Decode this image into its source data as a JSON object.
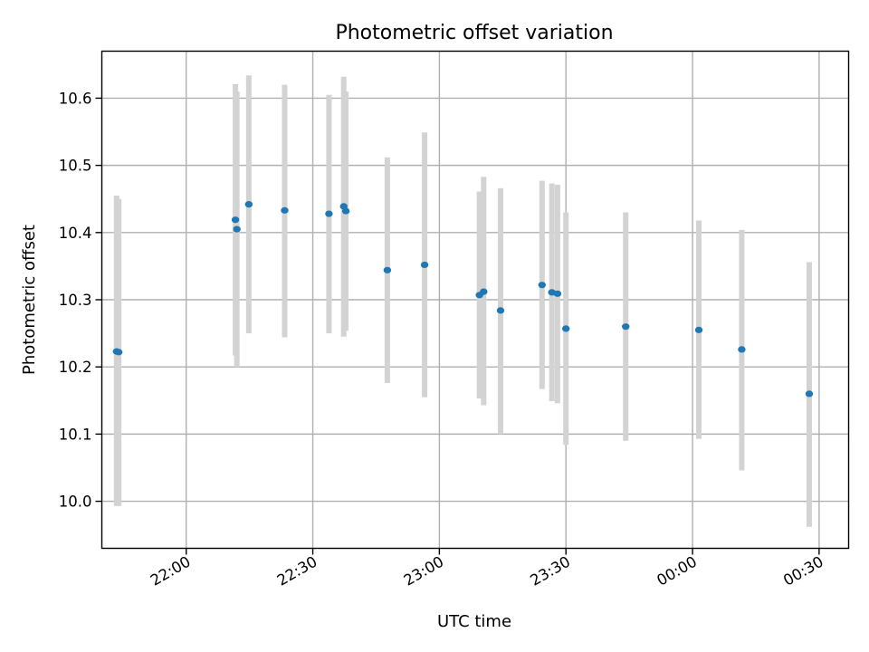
{
  "chart_data": {
    "type": "scatter",
    "title": "Photometric offset variation",
    "xlabel": "UTC time",
    "ylabel": "Photometric offset",
    "grid": true,
    "x_axis_type": "time",
    "xlim": [
      "21:40",
      "24:37"
    ],
    "ylim": [
      9.93,
      10.67
    ],
    "x_ticks": [
      {
        "value": "22:00",
        "label": "22:00"
      },
      {
        "value": "22:30",
        "label": "22:30"
      },
      {
        "value": "23:00",
        "label": "23:00"
      },
      {
        "value": "23:30",
        "label": "23:30"
      },
      {
        "value": "24:00",
        "label": "00:00"
      },
      {
        "value": "24:30",
        "label": "00:30"
      }
    ],
    "y_ticks": [
      10.0,
      10.1,
      10.2,
      10.3,
      10.4,
      10.5,
      10.6
    ],
    "series": [
      {
        "color": "#1f77b4",
        "errorbar_color": "#d3d3d3",
        "points": [
          {
            "x": "21:43:30",
            "y": 10.223,
            "ylow": 9.993,
            "yhigh": 10.455
          },
          {
            "x": "21:44:00",
            "y": 10.222,
            "ylow": 9.993,
            "yhigh": 10.45
          },
          {
            "x": "22:11:40",
            "y": 10.419,
            "ylow": 10.217,
            "yhigh": 10.621
          },
          {
            "x": "22:12:00",
            "y": 10.405,
            "ylow": 10.2,
            "yhigh": 10.61
          },
          {
            "x": "22:14:50",
            "y": 10.442,
            "ylow": 10.25,
            "yhigh": 10.634
          },
          {
            "x": "22:23:20",
            "y": 10.433,
            "ylow": 10.244,
            "yhigh": 10.62
          },
          {
            "x": "22:33:50",
            "y": 10.428,
            "ylow": 10.25,
            "yhigh": 10.605
          },
          {
            "x": "22:37:20",
            "y": 10.439,
            "ylow": 10.245,
            "yhigh": 10.632
          },
          {
            "x": "22:37:50",
            "y": 10.432,
            "ylow": 10.254,
            "yhigh": 10.61
          },
          {
            "x": "22:47:40",
            "y": 10.344,
            "ylow": 10.176,
            "yhigh": 10.512
          },
          {
            "x": "22:56:30",
            "y": 10.352,
            "ylow": 10.155,
            "yhigh": 10.549
          },
          {
            "x": "23:09:30",
            "y": 10.307,
            "ylow": 10.153,
            "yhigh": 10.461
          },
          {
            "x": "23:10:30",
            "y": 10.312,
            "ylow": 10.143,
            "yhigh": 10.483
          },
          {
            "x": "23:14:30",
            "y": 10.284,
            "ylow": 10.1,
            "yhigh": 10.466
          },
          {
            "x": "23:24:20",
            "y": 10.322,
            "ylow": 10.167,
            "yhigh": 10.477
          },
          {
            "x": "23:26:40",
            "y": 10.311,
            "ylow": 10.149,
            "yhigh": 10.473
          },
          {
            "x": "23:28:00",
            "y": 10.309,
            "ylow": 10.146,
            "yhigh": 10.471
          },
          {
            "x": "23:30:00",
            "y": 10.257,
            "ylow": 10.084,
            "yhigh": 10.43
          },
          {
            "x": "23:44:10",
            "y": 10.26,
            "ylow": 10.09,
            "yhigh": 10.43
          },
          {
            "x": "24:01:30",
            "y": 10.255,
            "ylow": 10.093,
            "yhigh": 10.418
          },
          {
            "x": "24:11:40",
            "y": 10.226,
            "ylow": 10.046,
            "yhigh": 10.404
          },
          {
            "x": "24:27:40",
            "y": 10.16,
            "ylow": 9.962,
            "yhigh": 10.356
          }
        ]
      }
    ]
  }
}
